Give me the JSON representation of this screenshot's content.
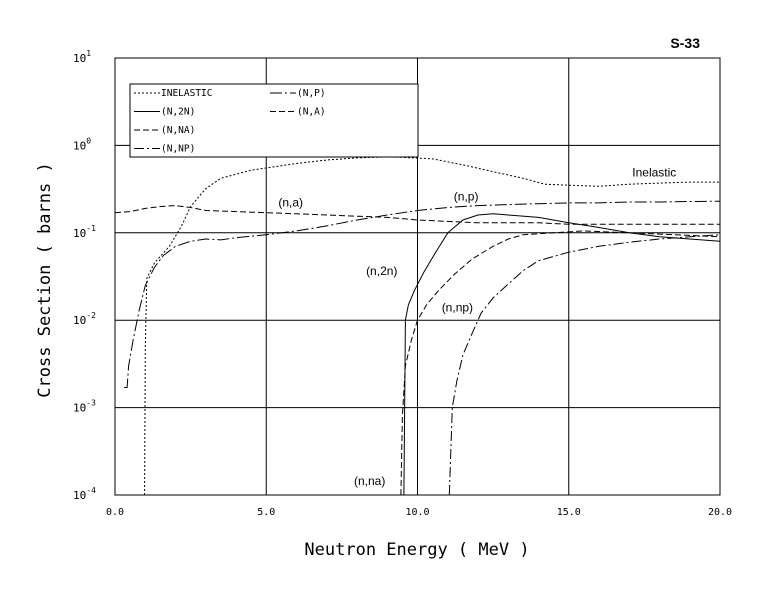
{
  "chart_data": {
    "type": "line",
    "title": "S-33",
    "xlabel": "Neutron Energy ( MeV )",
    "ylabel": "Cross Section ( barns )",
    "xlim": [
      0,
      20
    ],
    "ylim": [
      0.0001,
      10
    ],
    "yscale": "log",
    "grid": true,
    "legend_position": "top-left",
    "x_ticks": [
      "0.0",
      "5.0",
      "10.0",
      "15.0",
      "20.0"
    ],
    "y_ticks": [
      {
        "base": "10",
        "exp": "1",
        "value": 10
      },
      {
        "base": "10",
        "exp": "0",
        "value": 1
      },
      {
        "base": "10",
        "exp": "-1",
        "value": 0.1
      },
      {
        "base": "10",
        "exp": "-2",
        "value": 0.01
      },
      {
        "base": "10",
        "exp": "-3",
        "value": 0.001
      },
      {
        "base": "10",
        "exp": "-4",
        "value": 0.0001
      }
    ],
    "series": [
      {
        "name": "INELASTIC",
        "legend": "INELASTIC",
        "annotation": "Inelastic",
        "annotation_at": [
          17.1,
          0.44
        ],
        "dash": "2,2",
        "points": [
          [
            0.98,
            0.0001
          ],
          [
            1.0,
            0.005
          ],
          [
            1.05,
            0.03
          ],
          [
            1.3,
            0.045
          ],
          [
            1.8,
            0.07
          ],
          [
            2.2,
            0.12
          ],
          [
            2.5,
            0.2
          ],
          [
            3.0,
            0.32
          ],
          [
            3.5,
            0.42
          ],
          [
            4.5,
            0.52
          ],
          [
            6,
            0.62
          ],
          [
            7,
            0.68
          ],
          [
            8,
            0.72
          ],
          [
            9,
            0.74
          ],
          [
            9.5,
            0.73
          ],
          [
            10.5,
            0.7
          ],
          [
            11.5,
            0.6
          ],
          [
            12.5,
            0.5
          ],
          [
            13.5,
            0.42
          ],
          [
            14.2,
            0.36
          ],
          [
            15,
            0.35
          ],
          [
            16,
            0.34
          ],
          [
            17,
            0.36
          ],
          [
            18,
            0.37
          ],
          [
            19,
            0.38
          ],
          [
            20,
            0.38
          ]
        ]
      },
      {
        "name": "(N,2N)",
        "legend": "(N,2N)",
        "annotation": "(n,2n)",
        "annotation_at": [
          8.3,
          0.033
        ],
        "dash": "none",
        "points": [
          [
            9.55,
            0.0001
          ],
          [
            9.6,
            0.01
          ],
          [
            9.7,
            0.015
          ],
          [
            9.9,
            0.022
          ],
          [
            10.2,
            0.035
          ],
          [
            10.6,
            0.06
          ],
          [
            11,
            0.1
          ],
          [
            11.5,
            0.14
          ],
          [
            12,
            0.16
          ],
          [
            12.5,
            0.165
          ],
          [
            13,
            0.16
          ],
          [
            14,
            0.15
          ],
          [
            15,
            0.13
          ],
          [
            16,
            0.115
          ],
          [
            17,
            0.1
          ],
          [
            18,
            0.09
          ],
          [
            19,
            0.085
          ],
          [
            20,
            0.08
          ]
        ]
      },
      {
        "name": "(N,NA)",
        "legend": "(N,NA)",
        "annotation": "(n,na)",
        "annotation_at": [
          7.9,
          0.00013
        ],
        "dash": "6,3",
        "points": [
          [
            9.45,
            0.0001
          ],
          [
            9.5,
            0.0008
          ],
          [
            9.6,
            0.003
          ],
          [
            9.8,
            0.006
          ],
          [
            10,
            0.01
          ],
          [
            10.3,
            0.015
          ],
          [
            10.7,
            0.022
          ],
          [
            11.2,
            0.033
          ],
          [
            11.8,
            0.05
          ],
          [
            12.5,
            0.07
          ],
          [
            13,
            0.085
          ],
          [
            13.5,
            0.095
          ],
          [
            14.5,
            0.1
          ],
          [
            15.5,
            0.105
          ],
          [
            17,
            0.1
          ],
          [
            18.5,
            0.095
          ],
          [
            20,
            0.09
          ]
        ]
      },
      {
        "name": "(N,NP)",
        "legend": "(N,NP)",
        "annotation": "(n,np)",
        "annotation_at": [
          10.8,
          0.0125
        ],
        "dash": "10,3,2,3",
        "points": [
          [
            11.05,
            0.0001
          ],
          [
            11.15,
            0.001
          ],
          [
            11.3,
            0.002
          ],
          [
            11.5,
            0.004
          ],
          [
            11.8,
            0.007
          ],
          [
            12.1,
            0.012
          ],
          [
            12.5,
            0.018
          ],
          [
            13,
            0.026
          ],
          [
            13.5,
            0.037
          ],
          [
            14,
            0.048
          ],
          [
            15,
            0.06
          ],
          [
            16,
            0.07
          ],
          [
            17,
            0.078
          ],
          [
            18,
            0.085
          ],
          [
            19,
            0.09
          ],
          [
            20,
            0.095
          ]
        ]
      },
      {
        "name": "(N,P)",
        "legend": "(N,P)",
        "annotation": "(n,p)",
        "annotation_at": [
          11.2,
          0.235
        ],
        "dash": "12,3,2,3",
        "points": [
          [
            0.3,
            0.0017
          ],
          [
            0.4,
            0.0017
          ],
          [
            0.45,
            0.003
          ],
          [
            0.6,
            0.006
          ],
          [
            0.8,
            0.013
          ],
          [
            1.0,
            0.025
          ],
          [
            1.3,
            0.04
          ],
          [
            1.6,
            0.055
          ],
          [
            2.0,
            0.07
          ],
          [
            2.5,
            0.08
          ],
          [
            3.0,
            0.085
          ],
          [
            3.5,
            0.083
          ],
          [
            4.0,
            0.088
          ],
          [
            5,
            0.095
          ],
          [
            6,
            0.105
          ],
          [
            7,
            0.12
          ],
          [
            8,
            0.14
          ],
          [
            9,
            0.16
          ],
          [
            10,
            0.18
          ],
          [
            11,
            0.195
          ],
          [
            12,
            0.205
          ],
          [
            13,
            0.21
          ],
          [
            14,
            0.215
          ],
          [
            15,
            0.22
          ],
          [
            16,
            0.22
          ],
          [
            17,
            0.225
          ],
          [
            18,
            0.225
          ],
          [
            19,
            0.228
          ],
          [
            20,
            0.23
          ]
        ]
      },
      {
        "name": "(N,A)",
        "legend": "(N,A)",
        "annotation": "(n,a)",
        "annotation_at": [
          5.4,
          0.2
        ],
        "dash": "6,3",
        "points": [
          [
            0,
            0.17
          ],
          [
            0.5,
            0.175
          ],
          [
            1,
            0.19
          ],
          [
            1.5,
            0.2
          ],
          [
            2,
            0.205
          ],
          [
            2.5,
            0.195
          ],
          [
            3,
            0.18
          ],
          [
            4,
            0.175
          ],
          [
            5,
            0.17
          ],
          [
            6,
            0.165
          ],
          [
            7,
            0.16
          ],
          [
            8,
            0.155
          ],
          [
            9,
            0.15
          ],
          [
            10,
            0.14
          ],
          [
            11,
            0.135
          ],
          [
            12,
            0.13
          ],
          [
            13,
            0.13
          ],
          [
            14,
            0.13
          ],
          [
            15,
            0.125
          ],
          [
            16,
            0.125
          ],
          [
            17,
            0.125
          ],
          [
            18,
            0.125
          ],
          [
            19,
            0.125
          ],
          [
            20,
            0.125
          ]
        ]
      }
    ]
  }
}
